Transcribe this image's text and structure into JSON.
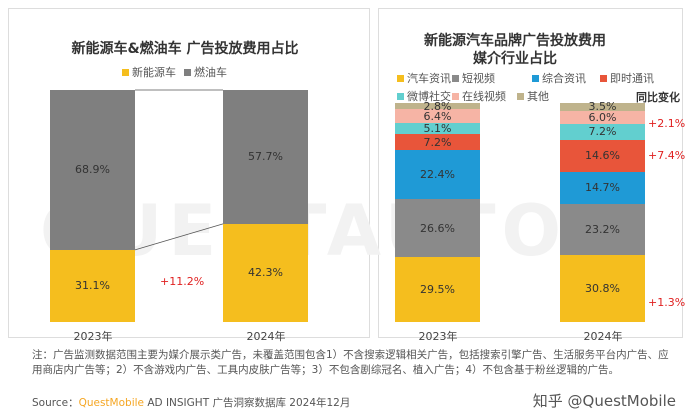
{
  "watermark_bg": "QUESTAUTO",
  "chart_data": [
    {
      "type": "bar",
      "stacked": true,
      "title": "新能源车&燃油车 广告投放费用占比",
      "categories": [
        "2023年",
        "2024年"
      ],
      "series": [
        {
          "name": "新能源车",
          "color": "#F5BE1E",
          "values": [
            31.1,
            42.3
          ]
        },
        {
          "name": "燃油车",
          "color": "#7F7F7F",
          "values": [
            68.9,
            57.7
          ]
        }
      ],
      "labels": [
        [
          "31.1%",
          "68.9%"
        ],
        [
          "42.3%",
          "57.7%"
        ]
      ],
      "annotation": "+11.2%",
      "ylim": [
        0,
        100
      ]
    },
    {
      "type": "bar",
      "stacked": true,
      "title": "新能源汽车品牌广告投放费用",
      "title2": "媒介行业占比",
      "categories": [
        "2023年",
        "2024年"
      ],
      "series": [
        {
          "name": "汽车资讯",
          "color": "#F5BE1E",
          "values": [
            29.5,
            30.8
          ]
        },
        {
          "name": "短视频",
          "color": "#8A8A8A",
          "values": [
            26.6,
            23.2
          ]
        },
        {
          "name": "综合资讯",
          "color": "#1F9AD6",
          "values": [
            22.4,
            14.7
          ]
        },
        {
          "name": "即时通讯",
          "color": "#E8553A",
          "values": [
            7.2,
            14.6
          ]
        },
        {
          "name": "微博社交",
          "color": "#62CFCF",
          "values": [
            5.1,
            7.2
          ]
        },
        {
          "name": "在线视频",
          "color": "#F6B4A5",
          "values": [
            6.4,
            6.0
          ]
        },
        {
          "name": "其他",
          "color": "#BFB38C",
          "values": [
            2.8,
            3.5
          ]
        }
      ],
      "yoy_title": "同比变化",
      "yoy": [
        {
          "series": "微博社交",
          "text": "+2.1%"
        },
        {
          "series": "即时通讯",
          "text": "+7.4%"
        },
        {
          "series": "汽车资讯",
          "text": "+1.3%"
        }
      ],
      "ylim": [
        0,
        100
      ]
    }
  ],
  "note": "注：广告监测数据范围主要为媒介展示类广告，未覆盖范围包含1）不含搜索逻辑相关广告，包括搜索引擎广告、生活服务平台内广告、应用商店内广告等；2）不含游戏内广告、工具内皮肤广告等；3）不包含剧综冠名、植入广告；4）不包含基于粉丝逻辑的广告。",
  "source_label": "Source：",
  "source_brand": "QuestMobile",
  "source_rest": " AD INSIGHT 广告洞察数据库 2024年12月",
  "brand_color": "#F5A623",
  "footer_watermark": "知乎 @QuestMobile"
}
